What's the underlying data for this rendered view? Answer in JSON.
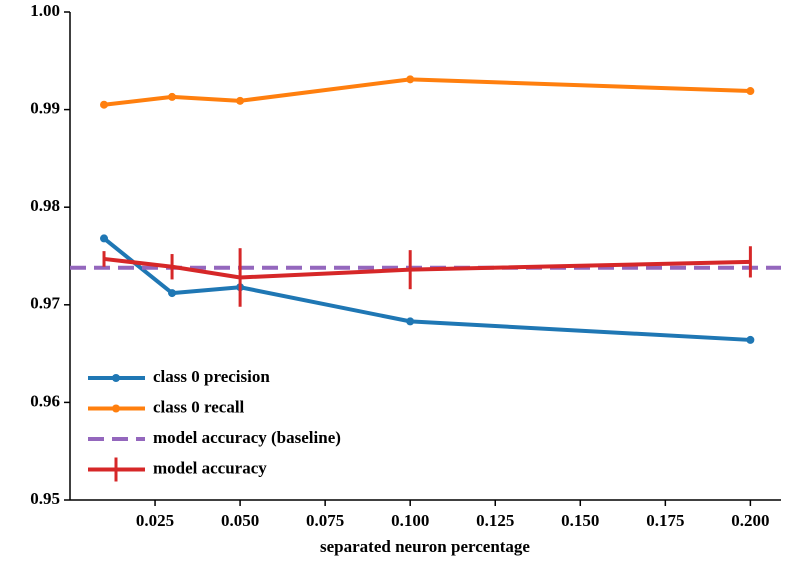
{
  "chart_data": {
    "type": "line",
    "xlabel": "separated neuron percentage",
    "x": [
      0.01,
      0.03,
      0.05,
      0.1,
      0.2
    ],
    "xlim": [
      0,
      0.209
    ],
    "xticks": [
      0.025,
      {
        "value": 0.05,
        "label": "0.050"
      },
      0.075,
      {
        "value": 0.1,
        "label": "0.100"
      },
      0.125,
      {
        "value": 0.15,
        "label": "0.150"
      },
      0.175,
      {
        "value": 0.2,
        "label": "0.200"
      }
    ],
    "ylim": [
      0.95,
      1.0
    ],
    "yticks": [
      0.95,
      0.96,
      0.97,
      0.98,
      0.99,
      {
        "value": 1.0,
        "label": "1.00"
      }
    ],
    "legend": "lower left",
    "series": [
      {
        "name": "class 0 precision",
        "color": "#1f77b4",
        "kind": "line",
        "values": [
          0.9768,
          0.9712,
          0.9718,
          0.9683,
          0.9664
        ]
      },
      {
        "name": "class 0 recall",
        "color": "#ff7f0e",
        "kind": "line",
        "values": [
          0.9905,
          0.9913,
          0.9909,
          0.9931,
          0.9919
        ]
      },
      {
        "name": "model accuracy (baseline)",
        "color": "#9467bd",
        "kind": "hline",
        "value": 0.9738
      },
      {
        "name": "model accuracy",
        "color": "#d62728",
        "kind": "errorbar",
        "values": [
          0.9747,
          0.9739,
          0.9728,
          0.9736,
          0.9744
        ],
        "errors": [
          0.0008,
          0.0013,
          0.003,
          0.002,
          0.0016
        ]
      }
    ]
  }
}
